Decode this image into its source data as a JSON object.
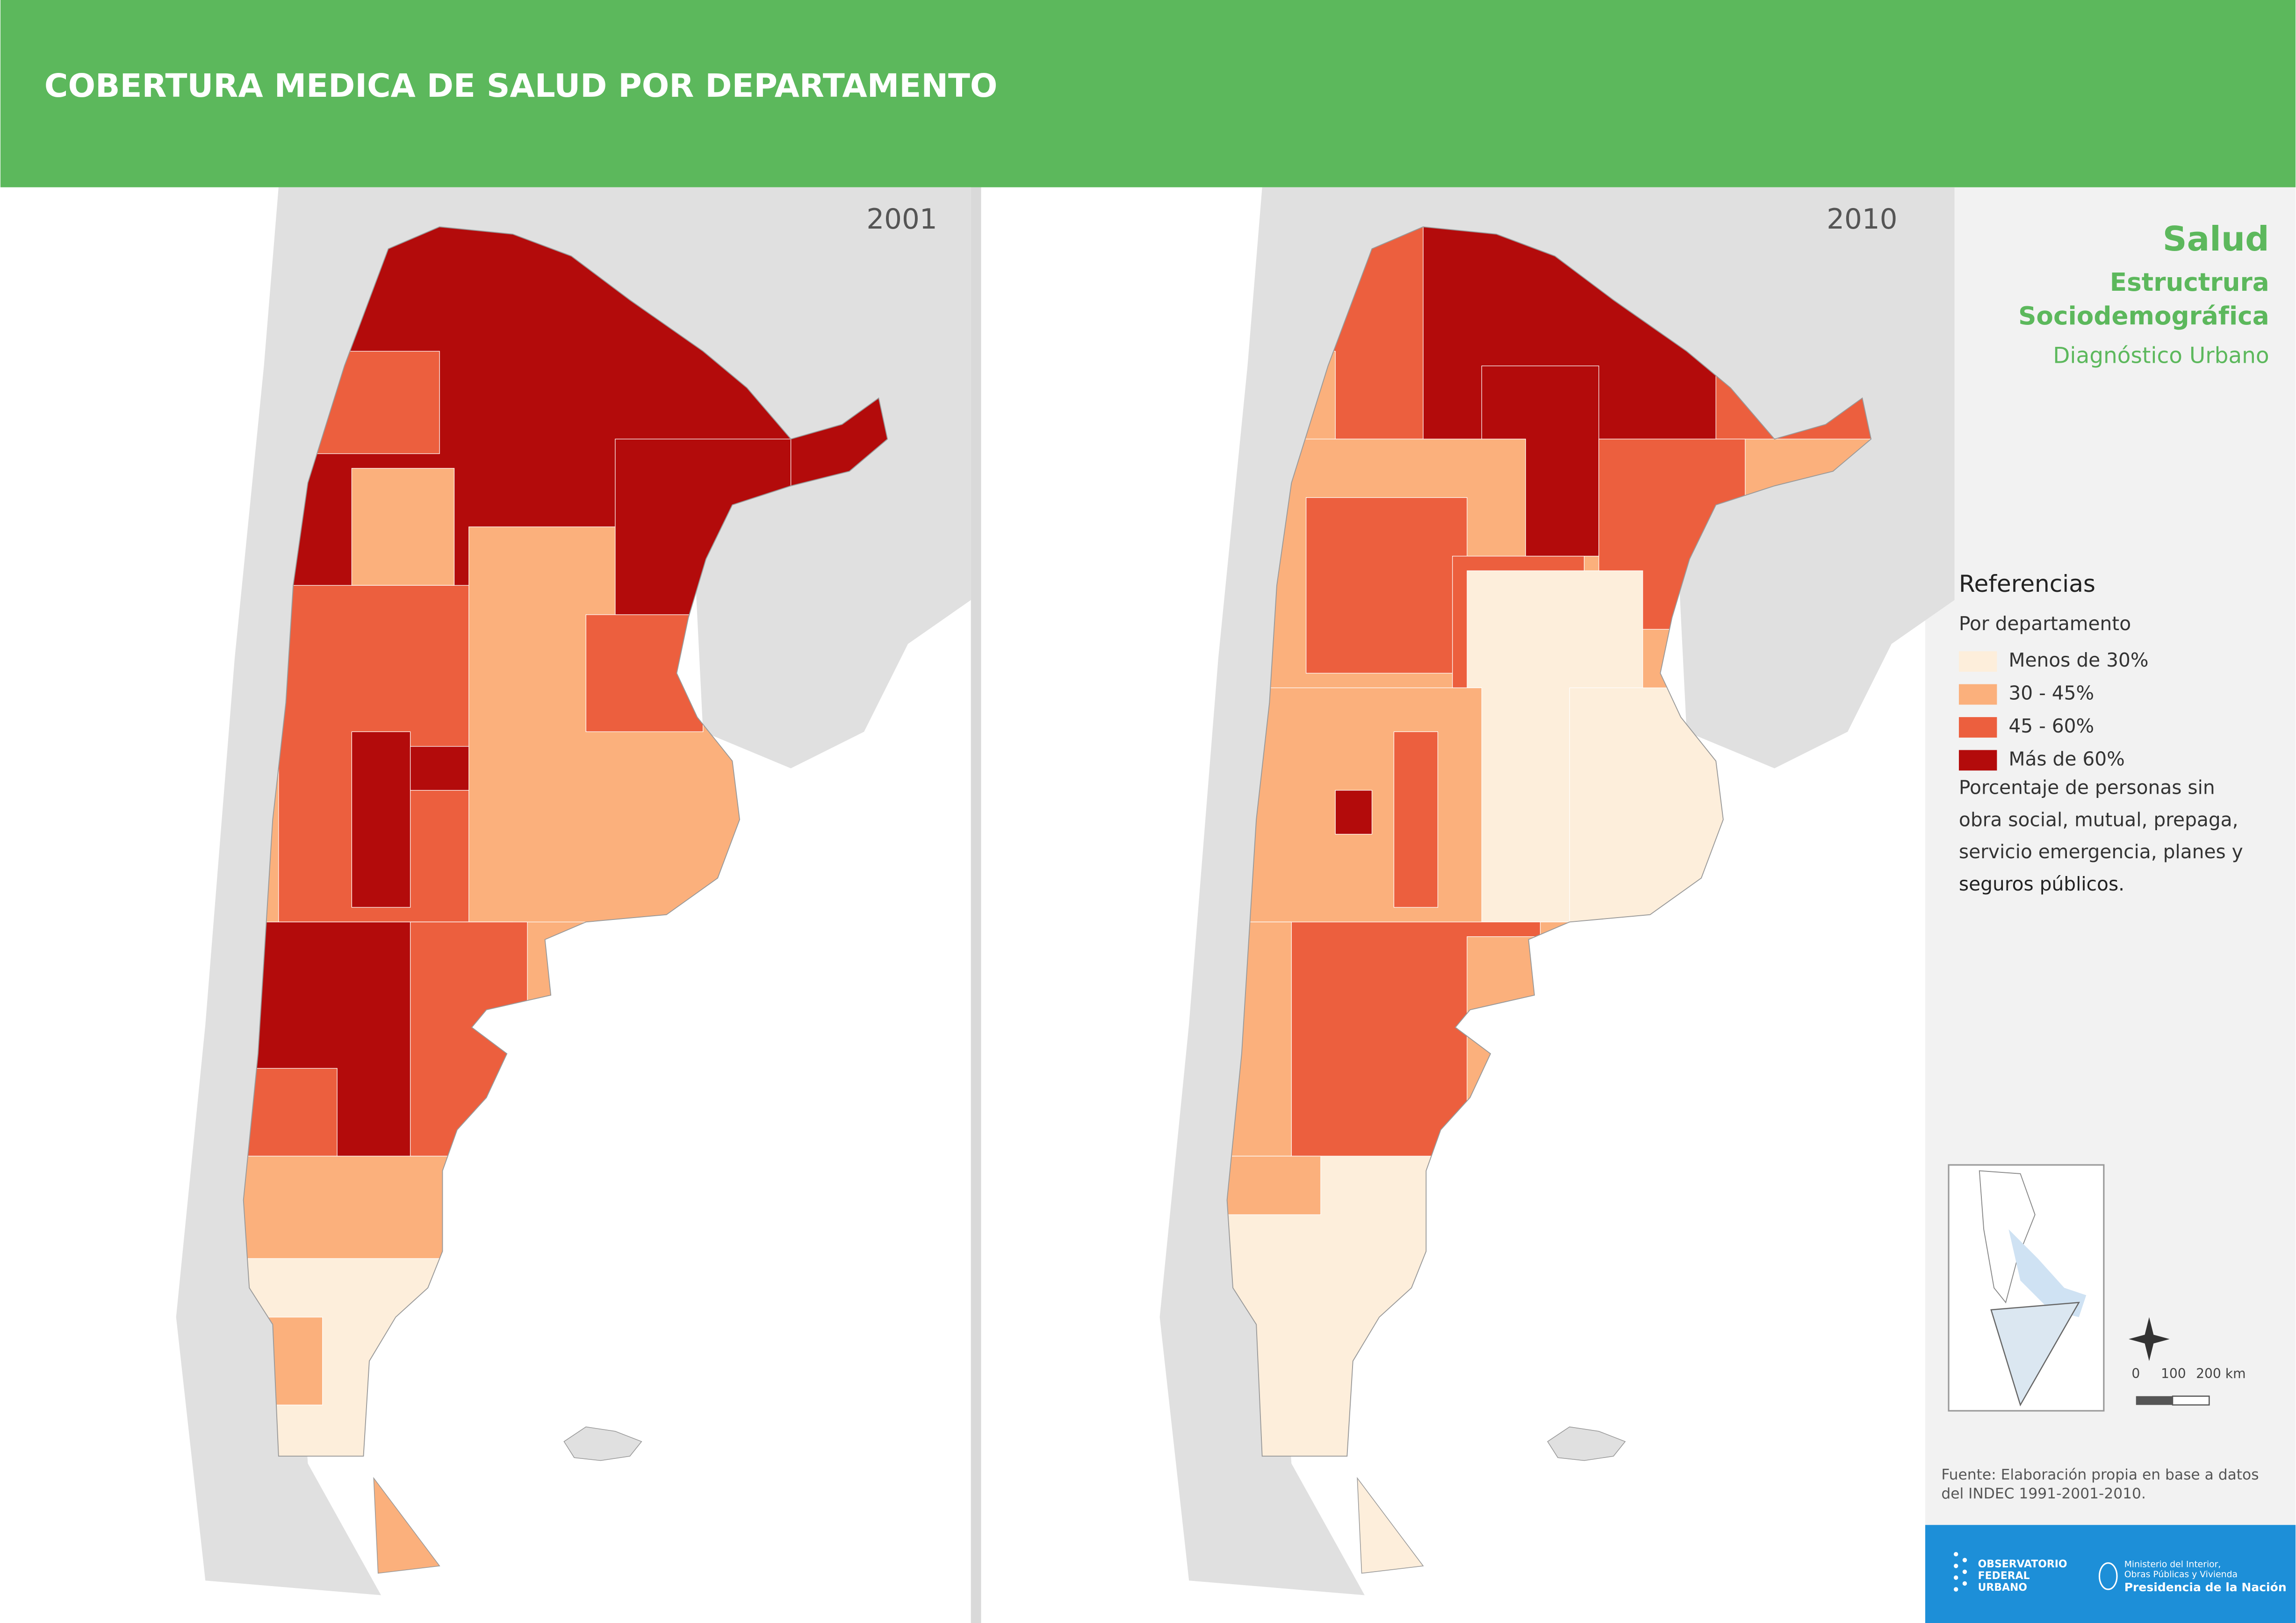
{
  "header": {
    "title": "COBERTURA MEDICA DE SALUD POR DEPARTAMENTO"
  },
  "maps": [
    {
      "year": "2001"
    },
    {
      "year": "2010"
    }
  ],
  "sidebar": {
    "title": "Salud",
    "subtitle": [
      "Estructrura",
      "Sociodemográfica"
    ],
    "section": "Diagnóstico Urbano",
    "legend": {
      "title": "Referencias",
      "subtitle": "Por departamento",
      "items": [
        {
          "label": "Menos de 30%",
          "color": "#fdeedb"
        },
        {
          "label": "30 - 45%",
          "color": "#fbb07c"
        },
        {
          "label": "45 - 60%",
          "color": "#ec5f3e"
        },
        {
          "label": "Más de 60%",
          "color": "#b30b0b"
        }
      ],
      "note": [
        "Porcentaje de personas sin",
        "obra social, mutual, prepaga,",
        "servicio emergencia, planes y",
        "seguros públicos."
      ]
    },
    "scale": [
      "0",
      "100",
      "200 km"
    ],
    "source": [
      "Fuente: Elaboración propia en base a datos",
      "del INDEC  1991-2001-2010."
    ],
    "logos": {
      "left": [
        "OBSERVATORIO",
        "FEDERAL",
        "URBANO"
      ],
      "right": [
        "Ministerio del Interior,",
        "Obras Públicas y Vivienda",
        "Presidencia de la Nación"
      ]
    }
  }
}
